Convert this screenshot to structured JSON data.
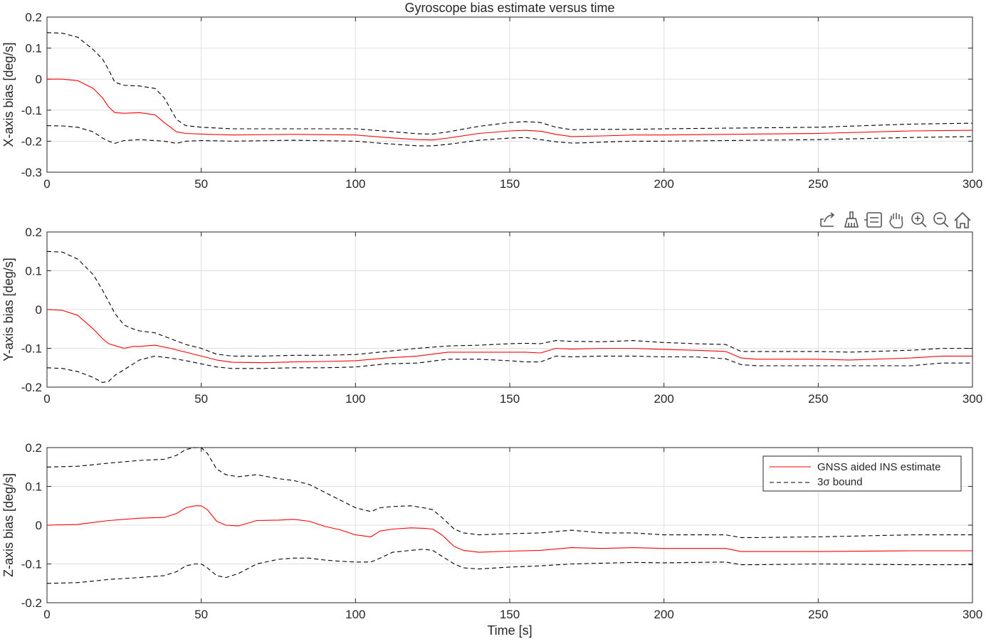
{
  "title": "Gyroscope bias estimate versus time",
  "xlabel": "Time [s]",
  "legend": {
    "estimate_label": "GNSS aided INS estimate",
    "bound_label": "3σ  bound",
    "placement": "top-right of third axes"
  },
  "toolbar": {
    "visible_on_axes": 2,
    "buttons": [
      {
        "name": "export-icon"
      },
      {
        "name": "brush-icon"
      },
      {
        "name": "datatip-icon"
      },
      {
        "name": "pan-hand-icon"
      },
      {
        "name": "zoom-in-icon"
      },
      {
        "name": "zoom-out-icon"
      },
      {
        "name": "home-icon"
      }
    ]
  },
  "colors": {
    "estimate": "#ff0000",
    "bound": "#000000",
    "grid": "#dfdfdf",
    "axes": "#262626"
  },
  "chart_data": [
    {
      "type": "line",
      "ylabel": "X-axis bias [deg/s]",
      "xlim": [
        0,
        300
      ],
      "ylim": [
        -0.3,
        0.2
      ],
      "xticks": [
        0,
        50,
        100,
        150,
        200,
        250,
        300
      ],
      "yticks": [
        -0.3,
        -0.2,
        -0.1,
        0,
        0.1,
        0.2
      ],
      "ytick_labels": [
        "-0.3",
        "-0.2",
        "-0.1",
        "0",
        "0.1",
        "0.2"
      ],
      "grid": true,
      "series": [
        {
          "name": "GNSS aided INS estimate",
          "style": "solid",
          "x": [
            0,
            5,
            10,
            15,
            18,
            20,
            22,
            25,
            30,
            35,
            38,
            42,
            45,
            50,
            60,
            80,
            100,
            110,
            120,
            125,
            130,
            140,
            150,
            155,
            160,
            165,
            170,
            175,
            180,
            190,
            200,
            220,
            250,
            280,
            300
          ],
          "y": [
            0,
            0,
            -0.005,
            -0.03,
            -0.06,
            -0.09,
            -0.108,
            -0.11,
            -0.108,
            -0.115,
            -0.14,
            -0.17,
            -0.175,
            -0.177,
            -0.18,
            -0.178,
            -0.18,
            -0.188,
            -0.195,
            -0.196,
            -0.19,
            -0.175,
            -0.167,
            -0.165,
            -0.168,
            -0.178,
            -0.185,
            -0.184,
            -0.183,
            -0.18,
            -0.18,
            -0.178,
            -0.175,
            -0.167,
            -0.165
          ]
        },
        {
          "name": "3σ  bound",
          "style": "dashed",
          "which": "upper",
          "x": [
            0,
            5,
            10,
            15,
            18,
            20,
            22,
            25,
            30,
            35,
            38,
            42,
            45,
            50,
            60,
            80,
            100,
            110,
            120,
            125,
            130,
            140,
            150,
            155,
            160,
            165,
            170,
            175,
            180,
            190,
            200,
            220,
            250,
            280,
            300
          ],
          "y": [
            0.15,
            0.148,
            0.135,
            0.095,
            0.065,
            0.03,
            -0.01,
            -0.02,
            -0.022,
            -0.03,
            -0.06,
            -0.13,
            -0.15,
            -0.155,
            -0.16,
            -0.16,
            -0.16,
            -0.168,
            -0.176,
            -0.177,
            -0.17,
            -0.152,
            -0.14,
            -0.137,
            -0.14,
            -0.155,
            -0.163,
            -0.162,
            -0.162,
            -0.162,
            -0.16,
            -0.158,
            -0.155,
            -0.145,
            -0.142
          ]
        },
        {
          "name": "3σ  bound",
          "style": "dashed",
          "which": "lower",
          "x": [
            0,
            5,
            10,
            15,
            18,
            20,
            22,
            25,
            30,
            35,
            38,
            42,
            45,
            50,
            60,
            80,
            100,
            110,
            120,
            125,
            130,
            140,
            150,
            155,
            160,
            165,
            170,
            175,
            180,
            190,
            200,
            220,
            250,
            280,
            300
          ],
          "y": [
            -0.15,
            -0.151,
            -0.155,
            -0.17,
            -0.19,
            -0.2,
            -0.207,
            -0.198,
            -0.195,
            -0.198,
            -0.2,
            -0.207,
            -0.2,
            -0.198,
            -0.2,
            -0.197,
            -0.2,
            -0.208,
            -0.215,
            -0.215,
            -0.21,
            -0.197,
            -0.19,
            -0.188,
            -0.195,
            -0.202,
            -0.206,
            -0.205,
            -0.203,
            -0.2,
            -0.2,
            -0.198,
            -0.195,
            -0.188,
            -0.185
          ]
        }
      ]
    },
    {
      "type": "line",
      "ylabel": "Y-axis bias [deg/s]",
      "xlim": [
        0,
        300
      ],
      "ylim": [
        -0.2,
        0.2
      ],
      "xticks": [
        0,
        50,
        100,
        150,
        200,
        250,
        300
      ],
      "yticks": [
        -0.2,
        -0.1,
        0,
        0.1,
        0.2
      ],
      "ytick_labels": [
        "-0.2",
        "-0.1",
        "0",
        "0.1",
        "0.2"
      ],
      "grid": true,
      "series": [
        {
          "name": "GNSS aided INS estimate",
          "style": "solid",
          "x": [
            0,
            5,
            10,
            15,
            18,
            20,
            22,
            25,
            28,
            30,
            35,
            40,
            45,
            50,
            55,
            60,
            70,
            80,
            90,
            100,
            110,
            120,
            130,
            140,
            150,
            155,
            160,
            165,
            170,
            180,
            190,
            200,
            210,
            220,
            225,
            230,
            250,
            260,
            280,
            290,
            300
          ],
          "y": [
            0,
            -0.002,
            -0.015,
            -0.05,
            -0.075,
            -0.088,
            -0.093,
            -0.1,
            -0.095,
            -0.095,
            -0.092,
            -0.1,
            -0.11,
            -0.12,
            -0.13,
            -0.136,
            -0.137,
            -0.135,
            -0.134,
            -0.132,
            -0.125,
            -0.12,
            -0.11,
            -0.11,
            -0.11,
            -0.11,
            -0.112,
            -0.1,
            -0.102,
            -0.1,
            -0.1,
            -0.103,
            -0.105,
            -0.108,
            -0.125,
            -0.128,
            -0.128,
            -0.13,
            -0.125,
            -0.12,
            -0.12
          ]
        },
        {
          "name": "3σ  bound",
          "style": "dashed",
          "which": "upper",
          "x": [
            0,
            5,
            10,
            15,
            18,
            20,
            22,
            25,
            28,
            30,
            35,
            40,
            45,
            50,
            55,
            60,
            70,
            80,
            90,
            100,
            110,
            120,
            130,
            140,
            150,
            155,
            160,
            165,
            170,
            180,
            190,
            200,
            210,
            220,
            225,
            230,
            250,
            260,
            280,
            290,
            300
          ],
          "y": [
            0.15,
            0.148,
            0.13,
            0.09,
            0.05,
            0.02,
            -0.01,
            -0.04,
            -0.05,
            -0.055,
            -0.06,
            -0.075,
            -0.09,
            -0.1,
            -0.115,
            -0.12,
            -0.12,
            -0.118,
            -0.118,
            -0.116,
            -0.108,
            -0.1,
            -0.094,
            -0.092,
            -0.088,
            -0.087,
            -0.088,
            -0.08,
            -0.082,
            -0.083,
            -0.08,
            -0.085,
            -0.088,
            -0.09,
            -0.108,
            -0.108,
            -0.108,
            -0.11,
            -0.105,
            -0.1,
            -0.1
          ]
        },
        {
          "name": "3σ  bound",
          "style": "dashed",
          "which": "lower",
          "x": [
            0,
            5,
            10,
            15,
            18,
            20,
            22,
            25,
            28,
            30,
            35,
            40,
            45,
            50,
            55,
            60,
            70,
            80,
            90,
            100,
            110,
            120,
            130,
            140,
            150,
            155,
            160,
            165,
            170,
            180,
            190,
            200,
            210,
            220,
            225,
            230,
            250,
            260,
            280,
            290,
            300
          ],
          "y": [
            -0.15,
            -0.152,
            -0.16,
            -0.175,
            -0.188,
            -0.185,
            -0.17,
            -0.155,
            -0.14,
            -0.13,
            -0.12,
            -0.125,
            -0.132,
            -0.14,
            -0.148,
            -0.152,
            -0.152,
            -0.15,
            -0.15,
            -0.148,
            -0.14,
            -0.138,
            -0.128,
            -0.128,
            -0.132,
            -0.135,
            -0.135,
            -0.12,
            -0.122,
            -0.12,
            -0.12,
            -0.122,
            -0.122,
            -0.127,
            -0.142,
            -0.145,
            -0.145,
            -0.145,
            -0.145,
            -0.138,
            -0.138
          ]
        }
      ]
    },
    {
      "type": "line",
      "ylabel": "Z-axis bias [deg/s]",
      "xlim": [
        0,
        300
      ],
      "ylim": [
        -0.2,
        0.2
      ],
      "xticks": [
        0,
        50,
        100,
        150,
        200,
        250,
        300
      ],
      "xtick_labels": [
        "0",
        "50",
        "100",
        "150",
        "200",
        "250",
        "300"
      ],
      "yticks": [
        -0.2,
        -0.1,
        0,
        0.1,
        0.2
      ],
      "ytick_labels": [
        "-0.2",
        "-0.1",
        "0",
        "0.1",
        "0.2"
      ],
      "grid": true,
      "series": [
        {
          "name": "GNSS aided INS estimate",
          "style": "solid",
          "x": [
            0,
            10,
            20,
            30,
            38,
            42,
            45,
            48,
            50,
            52,
            55,
            58,
            62,
            68,
            75,
            80,
            85,
            90,
            95,
            100,
            105,
            108,
            112,
            118,
            122,
            125,
            128,
            132,
            135,
            140,
            150,
            160,
            170,
            180,
            190,
            200,
            220,
            225,
            230,
            250,
            280,
            300
          ],
          "y": [
            0,
            0.002,
            0.012,
            0.018,
            0.02,
            0.03,
            0.045,
            0.05,
            0.05,
            0.04,
            0.01,
            0,
            -0.002,
            0.012,
            0.013,
            0.015,
            0.01,
            -0.003,
            -0.012,
            -0.025,
            -0.03,
            -0.015,
            -0.01,
            -0.007,
            -0.008,
            -0.01,
            -0.025,
            -0.055,
            -0.065,
            -0.07,
            -0.067,
            -0.065,
            -0.058,
            -0.06,
            -0.058,
            -0.06,
            -0.06,
            -0.068,
            -0.068,
            -0.068,
            -0.066,
            -0.066
          ]
        },
        {
          "name": "3σ  bound",
          "style": "dashed",
          "which": "upper",
          "x": [
            0,
            10,
            20,
            30,
            38,
            42,
            45,
            48,
            50,
            52,
            55,
            58,
            62,
            68,
            75,
            80,
            85,
            90,
            95,
            100,
            105,
            108,
            112,
            118,
            122,
            125,
            128,
            132,
            135,
            140,
            150,
            160,
            170,
            180,
            190,
            200,
            220,
            225,
            230,
            250,
            280,
            300
          ],
          "y": [
            0.15,
            0.152,
            0.16,
            0.167,
            0.17,
            0.18,
            0.195,
            0.2,
            0.2,
            0.185,
            0.145,
            0.13,
            0.125,
            0.13,
            0.12,
            0.115,
            0.105,
            0.085,
            0.065,
            0.045,
            0.035,
            0.045,
            0.048,
            0.05,
            0.045,
            0.04,
            0.02,
            -0.01,
            -0.02,
            -0.025,
            -0.022,
            -0.02,
            -0.013,
            -0.02,
            -0.02,
            -0.025,
            -0.025,
            -0.032,
            -0.032,
            -0.03,
            -0.025,
            -0.025
          ]
        },
        {
          "name": "3σ  bound",
          "style": "dashed",
          "which": "lower",
          "x": [
            0,
            10,
            20,
            30,
            38,
            42,
            45,
            48,
            50,
            52,
            55,
            58,
            62,
            68,
            75,
            80,
            85,
            90,
            95,
            100,
            105,
            108,
            112,
            118,
            122,
            125,
            128,
            132,
            135,
            140,
            150,
            160,
            170,
            180,
            190,
            200,
            220,
            225,
            230,
            250,
            280,
            300
          ],
          "y": [
            -0.15,
            -0.148,
            -0.14,
            -0.135,
            -0.13,
            -0.12,
            -0.105,
            -0.1,
            -0.1,
            -0.11,
            -0.13,
            -0.135,
            -0.125,
            -0.1,
            -0.088,
            -0.085,
            -0.085,
            -0.09,
            -0.093,
            -0.095,
            -0.095,
            -0.085,
            -0.07,
            -0.065,
            -0.062,
            -0.065,
            -0.08,
            -0.1,
            -0.11,
            -0.113,
            -0.108,
            -0.105,
            -0.1,
            -0.098,
            -0.096,
            -0.097,
            -0.095,
            -0.102,
            -0.102,
            -0.1,
            -0.102,
            -0.102
          ]
        }
      ]
    }
  ]
}
